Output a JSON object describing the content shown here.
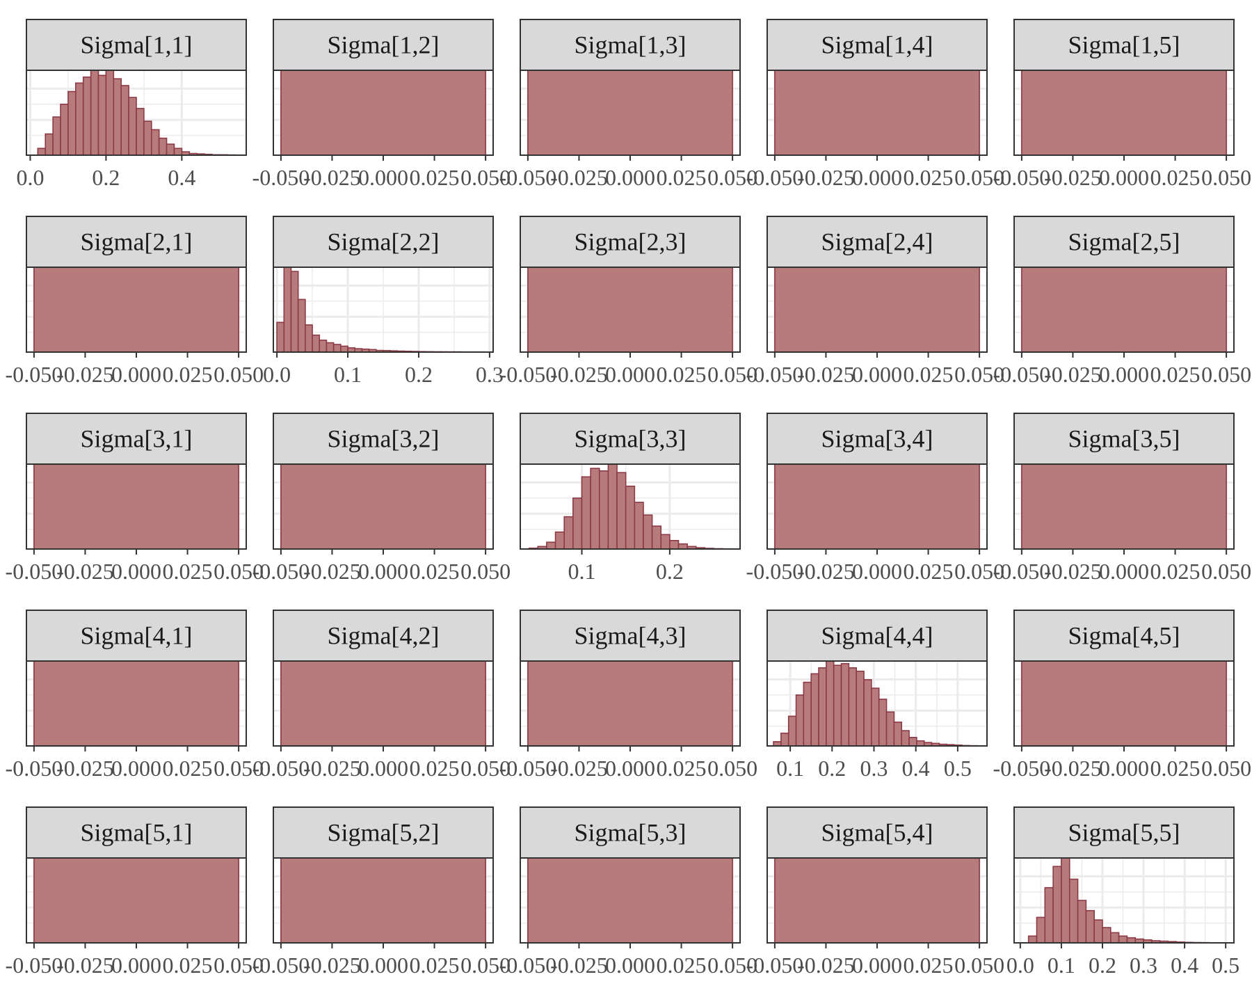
{
  "colors": {
    "bar_fill": "#b77b7b",
    "bar_stroke": "#8b3a46",
    "strip_fill": "#d9d9d9",
    "frame": "#333333",
    "grid": "#ebebeb",
    "tick_text": "#4d4d4d"
  },
  "chart_data": {
    "type": "histogram-facets",
    "grid": true,
    "facets": [
      {
        "label": "Sigma[1,1]",
        "kind": "hist",
        "xlim": [
          -0.01,
          0.57
        ],
        "ticks": [
          0,
          0.2,
          0.4
        ],
        "tick_labels": [
          "0.0",
          "0.2",
          "0.4"
        ],
        "bin_start": 0.02,
        "bin_width": 0.02,
        "counts": [
          0.08,
          0.25,
          0.45,
          0.6,
          0.75,
          0.85,
          0.92,
          1.0,
          0.94,
          1.0,
          0.9,
          0.82,
          0.68,
          0.55,
          0.4,
          0.3,
          0.2,
          0.13,
          0.08,
          0.04,
          0.02,
          0.015,
          0.01,
          0.005,
          0.005,
          0.003,
          0.002
        ]
      },
      {
        "label": "Sigma[1,2]",
        "kind": "zero",
        "tick_labels": [
          "-0.050",
          "-0.025",
          "0.000",
          "0.025",
          "0.050"
        ]
      },
      {
        "label": "Sigma[1,3]",
        "kind": "zero",
        "tick_labels": [
          "-0.050",
          "-0.025",
          "0.000",
          "0.025",
          "0.050"
        ]
      },
      {
        "label": "Sigma[1,4]",
        "kind": "zero",
        "tick_labels": [
          "-0.050",
          "-0.025",
          "0.000",
          "0.025",
          "0.050"
        ]
      },
      {
        "label": "Sigma[1,5]",
        "kind": "zero",
        "tick_labels": [
          "-0.050",
          "-0.025",
          "0.000",
          "0.025",
          "0.050"
        ]
      },
      {
        "label": "Sigma[2,1]",
        "kind": "zero",
        "tick_labels": [
          "-0.050",
          "-0.025",
          "0.000",
          "0.025",
          "0.050"
        ]
      },
      {
        "label": "Sigma[2,2]",
        "kind": "hist",
        "xlim": [
          -0.005,
          0.305
        ],
        "ticks": [
          0,
          0.1,
          0.2,
          0.3
        ],
        "tick_labels": [
          "0.0",
          "0.1",
          "0.2",
          "0.3"
        ],
        "bin_start": 0.0,
        "bin_width": 0.01,
        "counts": [
          0.35,
          1.0,
          0.95,
          0.62,
          0.32,
          0.2,
          0.14,
          0.11,
          0.09,
          0.07,
          0.05,
          0.04,
          0.035,
          0.03,
          0.02,
          0.018,
          0.015,
          0.012,
          0.01,
          0.008,
          0.006,
          0.005,
          0.004,
          0.004,
          0.003,
          0.003,
          0.002,
          0.002,
          0.002,
          0.001
        ]
      },
      {
        "label": "Sigma[2,3]",
        "kind": "zero",
        "tick_labels": [
          "-0.050",
          "-0.025",
          "0.000",
          "0.025",
          "0.050"
        ]
      },
      {
        "label": "Sigma[2,4]",
        "kind": "zero",
        "tick_labels": [
          "-0.050",
          "-0.025",
          "0.000",
          "0.025",
          "0.050"
        ]
      },
      {
        "label": "Sigma[2,5]",
        "kind": "zero",
        "tick_labels": [
          "-0.050",
          "-0.025",
          "0.000",
          "0.025",
          "0.050"
        ]
      },
      {
        "label": "Sigma[3,1]",
        "kind": "zero",
        "tick_labels": [
          "-0.050",
          "-0.025",
          "0.000",
          "0.025",
          "0.050"
        ]
      },
      {
        "label": "Sigma[3,2]",
        "kind": "zero",
        "tick_labels": [
          "-0.050",
          "-0.025",
          "0.000",
          "0.025",
          "0.050"
        ]
      },
      {
        "label": "Sigma[3,3]",
        "kind": "hist",
        "xlim": [
          0.03,
          0.28
        ],
        "ticks": [
          0.1,
          0.2
        ],
        "tick_labels": [
          "0.1",
          "0.2"
        ],
        "bin_start": 0.04,
        "bin_width": 0.01,
        "counts": [
          0.01,
          0.03,
          0.08,
          0.2,
          0.38,
          0.6,
          0.85,
          0.95,
          0.92,
          1.0,
          0.9,
          0.74,
          0.55,
          0.4,
          0.27,
          0.17,
          0.1,
          0.06,
          0.03,
          0.015,
          0.008,
          0.004,
          0.002
        ]
      },
      {
        "label": "Sigma[3,4]",
        "kind": "zero",
        "tick_labels": [
          "-0.050",
          "-0.025",
          "0.000",
          "0.025",
          "0.050"
        ]
      },
      {
        "label": "Sigma[3,5]",
        "kind": "zero",
        "tick_labels": [
          "-0.050",
          "-0.025",
          "0.000",
          "0.025",
          "0.050"
        ]
      },
      {
        "label": "Sigma[4,1]",
        "kind": "zero",
        "tick_labels": [
          "-0.050",
          "-0.025",
          "0.000",
          "0.025",
          "0.050"
        ]
      },
      {
        "label": "Sigma[4,2]",
        "kind": "zero",
        "tick_labels": [
          "-0.050",
          "-0.025",
          "0.000",
          "0.025",
          "0.050"
        ]
      },
      {
        "label": "Sigma[4,3]",
        "kind": "zero",
        "tick_labels": [
          "-0.050",
          "-0.025",
          "0.000",
          "0.025",
          "0.050"
        ]
      },
      {
        "label": "Sigma[4,4]",
        "kind": "hist",
        "xlim": [
          0.045,
          0.57
        ],
        "ticks": [
          0.1,
          0.2,
          0.3,
          0.4,
          0.5
        ],
        "tick_labels": [
          "0.1",
          "0.2",
          "0.3",
          "0.4",
          "0.5"
        ],
        "bin_start": 0.06,
        "bin_width": 0.018,
        "counts": [
          0.05,
          0.15,
          0.35,
          0.6,
          0.75,
          0.85,
          0.92,
          1.0,
          0.95,
          0.97,
          0.92,
          0.88,
          0.78,
          0.68,
          0.55,
          0.4,
          0.28,
          0.18,
          0.1,
          0.06,
          0.04,
          0.03,
          0.02,
          0.015,
          0.01,
          0.005,
          0.003,
          0.002
        ]
      },
      {
        "label": "Sigma[4,5]",
        "kind": "zero",
        "tick_labels": [
          "-0.050",
          "-0.025",
          "0.000",
          "0.025",
          "0.050"
        ]
      },
      {
        "label": "Sigma[5,1]",
        "kind": "zero",
        "tick_labels": [
          "-0.050",
          "-0.025",
          "0.000",
          "0.025",
          "0.050"
        ]
      },
      {
        "label": "Sigma[5,2]",
        "kind": "zero",
        "tick_labels": [
          "-0.050",
          "-0.025",
          "0.000",
          "0.025",
          "0.050"
        ]
      },
      {
        "label": "Sigma[5,3]",
        "kind": "zero",
        "tick_labels": [
          "-0.050",
          "-0.025",
          "0.000",
          "0.025",
          "0.050"
        ]
      },
      {
        "label": "Sigma[5,4]",
        "kind": "zero",
        "tick_labels": [
          "-0.050",
          "-0.025",
          "0.000",
          "0.025",
          "0.050"
        ]
      },
      {
        "label": "Sigma[5,5]",
        "kind": "hist",
        "xlim": [
          -0.015,
          0.52
        ],
        "ticks": [
          0,
          0.1,
          0.2,
          0.3,
          0.4,
          0.5
        ],
        "tick_labels": [
          "0.0",
          "0.1",
          "0.2",
          "0.3",
          "0.4",
          "0.5"
        ],
        "bin_start": 0.02,
        "bin_width": 0.02,
        "counts": [
          0.08,
          0.3,
          0.65,
          0.9,
          1.0,
          0.75,
          0.5,
          0.38,
          0.27,
          0.18,
          0.12,
          0.08,
          0.06,
          0.045,
          0.035,
          0.025,
          0.02,
          0.015,
          0.01,
          0.006,
          0.004,
          0.003
        ]
      }
    ]
  }
}
